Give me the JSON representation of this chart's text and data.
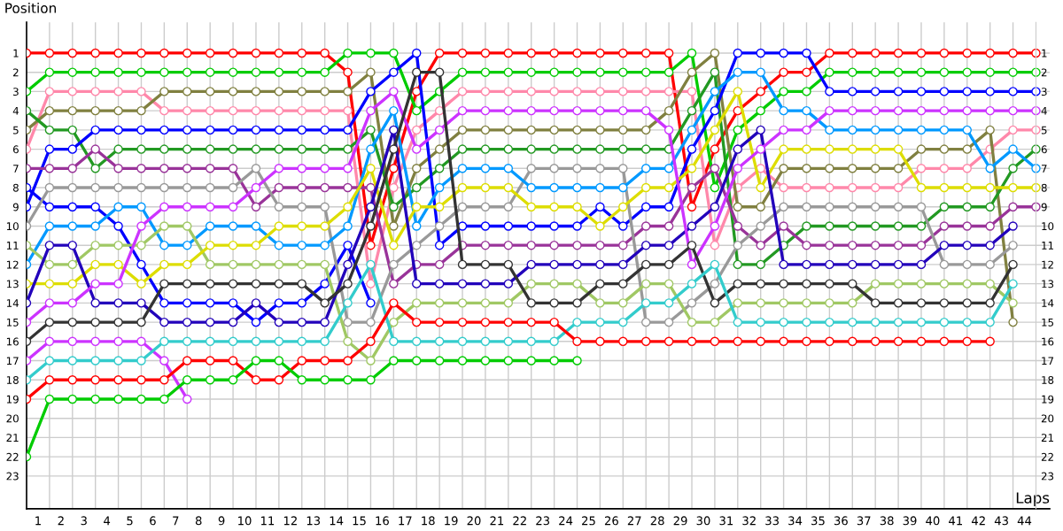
{
  "chart_data": {
    "type": "line",
    "xlabel": "Laps",
    "ylabel": "Position",
    "x": [
      0,
      1,
      2,
      3,
      4,
      5,
      6,
      7,
      8,
      9,
      10,
      11,
      12,
      13,
      14,
      15,
      16,
      17,
      18,
      19,
      20,
      21,
      22,
      23,
      24,
      25,
      26,
      27,
      28,
      29,
      30,
      31,
      32,
      33,
      34,
      35,
      36,
      37,
      38,
      39,
      40,
      41,
      42,
      43,
      44
    ],
    "xlim": [
      0,
      44.6
    ],
    "xticks": [
      {
        "value": 0.5,
        "label": "1"
      },
      {
        "value": 1.5,
        "label": "2"
      },
      {
        "value": 2.5,
        "label": "3"
      },
      {
        "value": 3.5,
        "label": "4"
      },
      {
        "value": 4.5,
        "label": "5"
      },
      {
        "value": 5.5,
        "label": "6"
      },
      {
        "value": 6.5,
        "label": "7"
      },
      {
        "value": 7.5,
        "label": "8"
      },
      {
        "value": 8.5,
        "label": "9"
      },
      {
        "value": 9.5,
        "label": "10"
      },
      {
        "value": 10.5,
        "label": "11"
      },
      {
        "value": 11.5,
        "label": "12"
      },
      {
        "value": 12.5,
        "label": "13"
      },
      {
        "value": 13.5,
        "label": "14"
      },
      {
        "value": 14.5,
        "label": "15"
      },
      {
        "value": 15.5,
        "label": "16"
      },
      {
        "value": 16.5,
        "label": "17"
      },
      {
        "value": 17.5,
        "label": "18"
      },
      {
        "value": 18.5,
        "label": "19"
      },
      {
        "value": 19.5,
        "label": "20"
      },
      {
        "value": 20.5,
        "label": "21"
      },
      {
        "value": 21.5,
        "label": "22"
      },
      {
        "value": 22.5,
        "label": "23"
      },
      {
        "value": 23.5,
        "label": "24"
      },
      {
        "value": 24.5,
        "label": "25"
      },
      {
        "value": 25.5,
        "label": "26"
      },
      {
        "value": 26.5,
        "label": "27"
      },
      {
        "value": 27.5,
        "label": "28"
      },
      {
        "value": 28.5,
        "label": "29"
      },
      {
        "value": 29.5,
        "label": "30"
      },
      {
        "value": 30.5,
        "label": "31"
      },
      {
        "value": 31.5,
        "label": "32"
      },
      {
        "value": 32.5,
        "label": "33"
      },
      {
        "value": 33.5,
        "label": "34"
      },
      {
        "value": 34.5,
        "label": "35"
      },
      {
        "value": 35.5,
        "label": "36"
      },
      {
        "value": 36.5,
        "label": "37"
      },
      {
        "value": 37.5,
        "label": "38"
      },
      {
        "value": 38.5,
        "label": "39"
      },
      {
        "value": 39.5,
        "label": "40"
      },
      {
        "value": 40.5,
        "label": "41"
      },
      {
        "value": 41.5,
        "label": "42"
      },
      {
        "value": 42.5,
        "label": "43"
      },
      {
        "value": 43.5,
        "label": "44"
      },
      {
        "value": 1,
        "label": null
      },
      {
        "value": 2,
        "label": null
      },
      {
        "value": 3,
        "label": null
      },
      {
        "value": 4,
        "label": null
      },
      {
        "value": 5,
        "label": null
      },
      {
        "value": 6,
        "label": null
      },
      {
        "value": 7,
        "label": null
      },
      {
        "value": 8,
        "label": null
      },
      {
        "value": 9,
        "label": null
      },
      {
        "value": 10,
        "label": null
      },
      {
        "value": 11,
        "label": null
      },
      {
        "value": 12,
        "label": null
      },
      {
        "value": 13,
        "label": null
      },
      {
        "value": 14,
        "label": null
      },
      {
        "value": 15,
        "label": null
      },
      {
        "value": 16,
        "label": null
      },
      {
        "value": 17,
        "label": null
      },
      {
        "value": 18,
        "label": null
      },
      {
        "value": 19,
        "label": null
      },
      {
        "value": 20,
        "label": null
      },
      {
        "value": 21,
        "label": null
      },
      {
        "value": 22,
        "label": null
      },
      {
        "value": 23,
        "label": null
      },
      {
        "value": 24,
        "label": null
      },
      {
        "value": 25,
        "label": null
      },
      {
        "value": 26,
        "label": null
      },
      {
        "value": 27,
        "label": null
      },
      {
        "value": 28,
        "label": null
      },
      {
        "value": 29,
        "label": null
      },
      {
        "value": 30,
        "label": null
      },
      {
        "value": 31,
        "label": null
      },
      {
        "value": 32,
        "label": null
      },
      {
        "value": 33,
        "label": null
      },
      {
        "value": 34,
        "label": null
      },
      {
        "value": 35,
        "label": null
      },
      {
        "value": 36,
        "label": null
      },
      {
        "value": 37,
        "label": null
      },
      {
        "value": 38,
        "label": null
      },
      {
        "value": 39,
        "label": null
      },
      {
        "value": 40,
        "label": null
      },
      {
        "value": 41,
        "label": null
      },
      {
        "value": 42,
        "label": null
      },
      {
        "value": 43,
        "label": null
      }
    ],
    "ylim": [
      24.7,
      -0.6
    ],
    "yticks": [
      1,
      2,
      3,
      4,
      5,
      6,
      7,
      8,
      9,
      10,
      11,
      12,
      13,
      14,
      15,
      16,
      17,
      18,
      19,
      20,
      21,
      22,
      23
    ],
    "y2lim": [
      24.7,
      -0.6
    ],
    "y2ticks": [
      1,
      2,
      3,
      4,
      5,
      6,
      7,
      8,
      9,
      10,
      11,
      12,
      13,
      14,
      15,
      16,
      17,
      18,
      19,
      20,
      21,
      22,
      23
    ],
    "grid": true,
    "marker": "circle",
    "line_style": "solid",
    "series": [
      {
        "color": "#ff0000",
        "values": [
          1,
          1,
          1,
          1,
          1,
          1,
          1,
          1,
          1,
          1,
          1,
          1,
          1,
          1,
          2,
          11,
          7,
          3,
          1,
          1,
          1,
          1,
          1,
          1,
          1,
          1,
          1,
          1,
          1,
          9,
          6,
          4,
          3,
          2,
          2,
          1,
          1,
          1,
          1,
          1,
          1,
          1,
          1,
          1,
          1
        ]
      },
      {
        "color": "#00cc00",
        "values": [
          3,
          2,
          2,
          2,
          2,
          2,
          2,
          2,
          2,
          2,
          2,
          2,
          2,
          2,
          1,
          1,
          1,
          4,
          3,
          2,
          2,
          2,
          2,
          2,
          2,
          2,
          2,
          2,
          2,
          1,
          8,
          5,
          4,
          3,
          3,
          2,
          2,
          2,
          2,
          2,
          2,
          2,
          2,
          2,
          2
        ]
      },
      {
        "color": "#ff88aa",
        "values": [
          6,
          3,
          3,
          3,
          3,
          3,
          4,
          4,
          4,
          4,
          4,
          4,
          4,
          4,
          4,
          13,
          8,
          5,
          4,
          3,
          3,
          3,
          3,
          3,
          3,
          3,
          3,
          3,
          3,
          3,
          11,
          8,
          7,
          8,
          8,
          8,
          8,
          8,
          8,
          7,
          7,
          7,
          6,
          5,
          5
        ]
      },
      {
        "color": "#808040",
        "values": [
          5,
          4,
          4,
          4,
          4,
          4,
          3,
          3,
          3,
          3,
          3,
          3,
          3,
          3,
          3,
          2,
          10,
          7,
          6,
          5,
          5,
          5,
          5,
          5,
          5,
          5,
          5,
          5,
          4,
          2,
          1,
          9,
          9,
          7,
          7,
          7,
          7,
          7,
          7,
          6,
          6,
          6,
          5,
          15,
          null
        ]
      },
      {
        "color": "#229922",
        "values": [
          4,
          5,
          5,
          7,
          6,
          6,
          6,
          6,
          6,
          6,
          6,
          6,
          6,
          6,
          6,
          5,
          9,
          8,
          7,
          6,
          6,
          6,
          6,
          6,
          6,
          6,
          6,
          6,
          6,
          4,
          2,
          12,
          12,
          11,
          10,
          10,
          10,
          10,
          10,
          10,
          9,
          9,
          9,
          7,
          6
        ]
      },
      {
        "color": "#0000ff",
        "values": [
          9,
          6,
          6,
          5,
          5,
          5,
          5,
          5,
          5,
          5,
          5,
          5,
          5,
          5,
          5,
          3,
          2,
          1,
          11,
          10,
          10,
          10,
          10,
          10,
          10,
          9,
          10,
          9,
          9,
          6,
          4,
          1,
          1,
          1,
          1,
          3,
          3,
          3,
          3,
          3,
          3,
          3,
          3,
          3,
          3
        ]
      },
      {
        "color": "#0000ff",
        "values": [
          8,
          9,
          9,
          9,
          10,
          12,
          14,
          14,
          14,
          14,
          15,
          14,
          14,
          13,
          11,
          14,
          null,
          null,
          null,
          null,
          null,
          null,
          null,
          null,
          null,
          null,
          null,
          null,
          null,
          null,
          null,
          null,
          null,
          null,
          null,
          null,
          null,
          null,
          null,
          null,
          null,
          null,
          null,
          null,
          null
        ]
      },
      {
        "color": "#993399",
        "values": [
          7,
          7,
          7,
          6,
          7,
          7,
          7,
          7,
          7,
          7,
          9,
          8,
          8,
          8,
          8,
          8,
          13,
          12,
          12,
          11,
          11,
          11,
          11,
          11,
          11,
          11,
          11,
          10,
          10,
          8,
          7,
          10,
          11,
          10,
          11,
          11,
          11,
          11,
          11,
          11,
          10,
          10,
          10,
          9,
          9
        ]
      },
      {
        "color": "#999999",
        "values": [
          10,
          8,
          8,
          8,
          8,
          8,
          8,
          8,
          8,
          8,
          7,
          9,
          9,
          9,
          15,
          15,
          12,
          11,
          10,
          9,
          9,
          9,
          7,
          7,
          7,
          7,
          7,
          15,
          15,
          14,
          13,
          11,
          10,
          9,
          9,
          9,
          9,
          9,
          9,
          9,
          12,
          12,
          12,
          11,
          null
        ]
      },
      {
        "color": "#0099ff",
        "values": [
          12,
          10,
          10,
          10,
          9,
          9,
          11,
          11,
          10,
          10,
          10,
          11,
          11,
          11,
          10,
          6,
          4,
          10,
          8,
          7,
          7,
          7,
          8,
          8,
          8,
          8,
          8,
          7,
          7,
          5,
          3,
          2,
          2,
          4,
          4,
          5,
          5,
          5,
          5,
          5,
          5,
          5,
          7,
          6,
          7
        ]
      },
      {
        "color": "#a0c864",
        "values": [
          11,
          12,
          12,
          11,
          11,
          11,
          10,
          10,
          12,
          12,
          12,
          12,
          12,
          12,
          16,
          17,
          15,
          14,
          14,
          14,
          14,
          14,
          13,
          13,
          13,
          14,
          14,
          13,
          13,
          15,
          15,
          14,
          14,
          14,
          14,
          14,
          14,
          13,
          13,
          13,
          13,
          13,
          13,
          14,
          null
        ]
      },
      {
        "color": "#dddd00",
        "values": [
          13,
          13,
          13,
          12,
          12,
          13,
          12,
          12,
          11,
          11,
          11,
          10,
          10,
          10,
          9,
          7,
          11,
          9,
          9,
          8,
          8,
          8,
          9,
          9,
          9,
          10,
          9,
          8,
          8,
          7,
          5,
          3,
          8,
          6,
          6,
          6,
          6,
          6,
          6,
          8,
          8,
          8,
          8,
          8,
          8
        ]
      },
      {
        "color": "#2200bb",
        "values": [
          14,
          11,
          11,
          14,
          14,
          14,
          15,
          15,
          15,
          15,
          14,
          15,
          15,
          15,
          12,
          9,
          5,
          13,
          13,
          13,
          13,
          13,
          12,
          12,
          12,
          12,
          12,
          11,
          11,
          10,
          9,
          6,
          5,
          12,
          12,
          12,
          12,
          12,
          12,
          12,
          11,
          11,
          11,
          10,
          null
        ]
      },
      {
        "color": "#cc33ff",
        "values": [
          15,
          14,
          14,
          13,
          13,
          10,
          9,
          9,
          9,
          9,
          8,
          7,
          7,
          7,
          7,
          4,
          3,
          6,
          5,
          4,
          4,
          4,
          4,
          4,
          4,
          4,
          4,
          4,
          5,
          12,
          10,
          7,
          6,
          5,
          5,
          4,
          4,
          4,
          4,
          4,
          4,
          4,
          4,
          4,
          4
        ]
      },
      {
        "color": "#333333",
        "values": [
          16,
          15,
          15,
          15,
          15,
          15,
          13,
          13,
          13,
          13,
          13,
          13,
          13,
          14,
          13,
          10,
          6,
          2,
          2,
          12,
          12,
          12,
          14,
          14,
          14,
          13,
          13,
          12,
          12,
          11,
          14,
          13,
          13,
          13,
          13,
          13,
          13,
          14,
          14,
          14,
          14,
          14,
          14,
          12,
          null
        ]
      },
      {
        "color": "#cc33ff",
        "values": [
          17,
          16,
          16,
          16,
          16,
          16,
          17,
          19,
          null,
          null,
          null,
          null,
          null,
          null,
          null,
          null,
          null,
          null,
          null,
          null,
          null,
          null,
          null,
          null,
          null,
          null,
          null,
          null,
          null,
          null,
          null,
          null,
          null,
          null,
          null,
          null,
          null,
          null,
          null,
          null,
          null,
          null,
          null,
          null,
          null
        ]
      },
      {
        "color": "#33cccc",
        "values": [
          18,
          17,
          17,
          17,
          17,
          17,
          16,
          16,
          16,
          16,
          16,
          16,
          16,
          16,
          14,
          12,
          16,
          16,
          16,
          16,
          16,
          16,
          16,
          16,
          15,
          15,
          15,
          14,
          14,
          13,
          12,
          15,
          15,
          15,
          15,
          15,
          15,
          15,
          15,
          15,
          15,
          15,
          15,
          13,
          null
        ]
      },
      {
        "color": "#ff0000",
        "values": [
          19,
          18,
          18,
          18,
          18,
          18,
          18,
          17,
          17,
          17,
          18,
          18,
          17,
          17,
          17,
          16,
          14,
          15,
          15,
          15,
          15,
          15,
          15,
          15,
          16,
          16,
          16,
          16,
          16,
          16,
          16,
          16,
          16,
          16,
          16,
          16,
          16,
          16,
          16,
          16,
          16,
          16,
          16,
          null,
          null
        ]
      },
      {
        "color": "#00cc00",
        "values": [
          22,
          19,
          19,
          19,
          19,
          19,
          19,
          18,
          18,
          18,
          17,
          17,
          18,
          18,
          18,
          18,
          17,
          17,
          17,
          17,
          17,
          17,
          17,
          17,
          17,
          null,
          null,
          null,
          null,
          null,
          null,
          null,
          null,
          null,
          null,
          null,
          null,
          null,
          null,
          null,
          null,
          null,
          null,
          null,
          null
        ]
      }
    ]
  }
}
